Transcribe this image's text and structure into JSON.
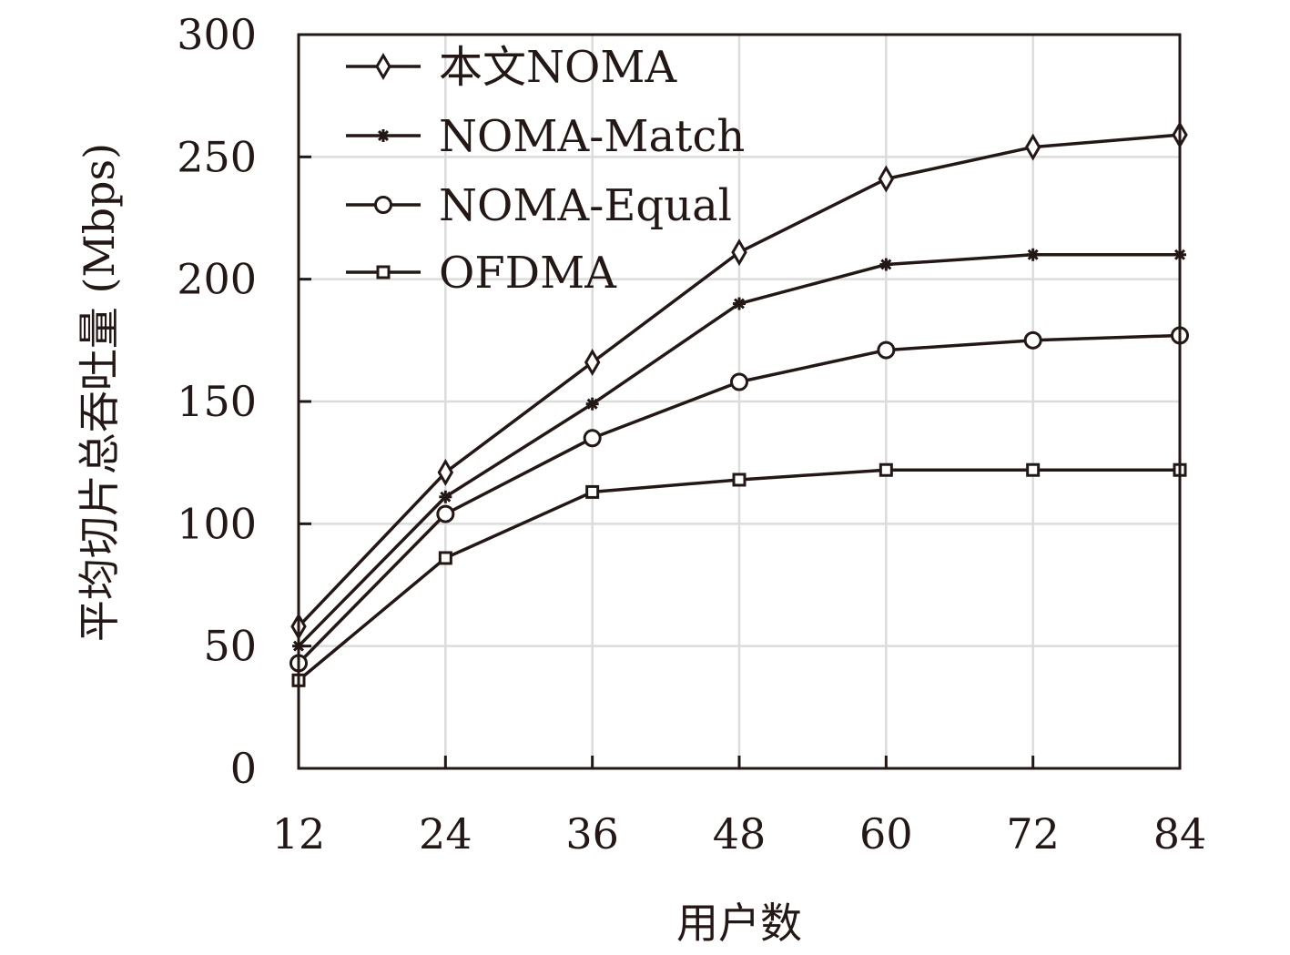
{
  "chart_data": {
    "type": "line",
    "title": "",
    "xlabel": "用户数",
    "ylabel": "平均切片总吞吐量 (Mbps)",
    "x": [
      12,
      24,
      36,
      48,
      60,
      72,
      84
    ],
    "x_tick_labels": [
      "12",
      "24",
      "36",
      "48",
      "60",
      "72",
      "84"
    ],
    "xlim": [
      12,
      84
    ],
    "ylim": [
      0,
      300
    ],
    "y_ticks": [
      0,
      50,
      100,
      150,
      200,
      250,
      300
    ],
    "y_tick_labels": [
      "0",
      "50",
      "100",
      "150",
      "200",
      "250",
      "300"
    ],
    "grid": true,
    "legend_position": "top-left",
    "line_color": "#231815",
    "grid_color": "#dcdcdc",
    "series": [
      {
        "name": "本文NOMA",
        "marker": "diamond",
        "values": [
          58,
          121,
          166,
          211,
          241,
          254,
          259
        ]
      },
      {
        "name": "NOMA-Match",
        "marker": "star",
        "values": [
          50,
          111,
          149,
          190,
          206,
          210,
          210
        ]
      },
      {
        "name": "NOMA-Equal",
        "marker": "circle",
        "values": [
          43,
          104,
          135,
          158,
          171,
          175,
          177
        ]
      },
      {
        "name": "OFDMA",
        "marker": "square",
        "values": [
          36,
          86,
          113,
          118,
          122,
          122,
          122
        ]
      }
    ]
  }
}
